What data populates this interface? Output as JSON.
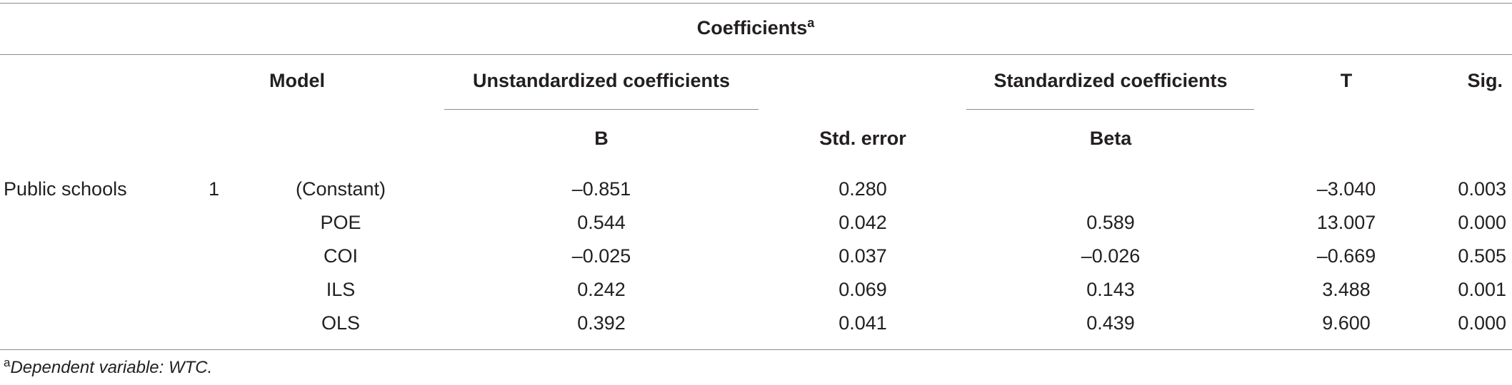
{
  "table": {
    "title": "Coefficients",
    "title_sup": "a",
    "headers": {
      "model": "Model",
      "unstandardized": "Unstandardized coefficients",
      "standardized": "Standardized coefficients",
      "t": "T",
      "sig": "Sig.",
      "b": "B",
      "std_error": "Std. error",
      "beta": "Beta"
    },
    "group": "Public schools",
    "model_number": "1",
    "rows": [
      {
        "predictor": "(Constant)",
        "b": "–0.851",
        "se": "0.280",
        "beta": "",
        "t": "–3.040",
        "sig": "0.003"
      },
      {
        "predictor": "POE",
        "b": "0.544",
        "se": "0.042",
        "beta": "0.589",
        "t": "13.007",
        "sig": "0.000"
      },
      {
        "predictor": "COI",
        "b": "–0.025",
        "se": "0.037",
        "beta": "–0.026",
        "t": "–0.669",
        "sig": "0.505"
      },
      {
        "predictor": "ILS",
        "b": "0.242",
        "se": "0.069",
        "beta": "0.143",
        "t": "3.488",
        "sig": "0.001"
      },
      {
        "predictor": "OLS",
        "b": "0.392",
        "se": "0.041",
        "beta": "0.439",
        "t": "9.600",
        "sig": "0.000"
      }
    ]
  },
  "footnote": {
    "marker": "a",
    "text": "Dependent variable: WTC."
  }
}
